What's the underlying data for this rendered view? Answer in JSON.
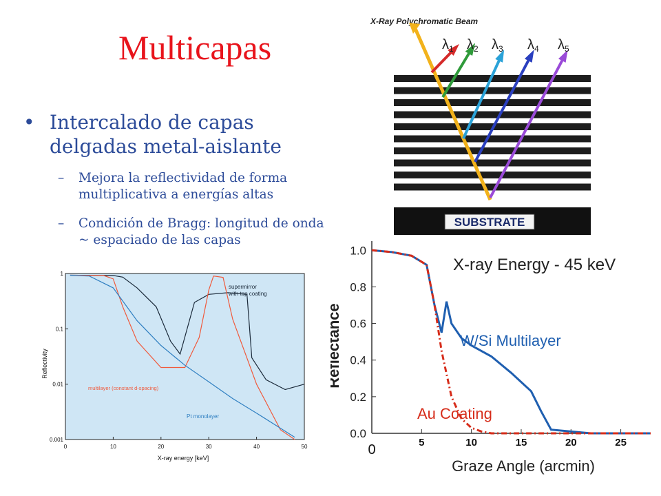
{
  "slide": {
    "title": "Multicapas",
    "bullet": "Intercalado de capas delgadas metal-aislante",
    "subbullets": [
      "Mejora la reflectividad de forma multiplicativa a energías altas",
      "Condición de Bragg: longitud de onda ~ espaciado de las capas"
    ]
  },
  "diagram": {
    "beam_label": "X-Ray Polychromatic Beam",
    "wavelengths": [
      "λ1",
      "λ2",
      "λ3",
      "λ4",
      "λ5"
    ],
    "substrate_label": "SUBSTRATE",
    "colors": {
      "beam": "#f2b21b",
      "l1": "#d52a2a",
      "l2": "#2f9a3a",
      "l3": "#2aa2d8",
      "l4": "#2a3fbf",
      "l5": "#9a4ad8"
    }
  },
  "chart_data": [
    {
      "type": "line",
      "xlabel": "X-ray energy [keV]",
      "ylabel": "Reflectivity",
      "x_ticks": [
        "0",
        "10",
        "20",
        "30",
        "40",
        "50"
      ],
      "y_ticks": [
        "0.001",
        "0.01",
        "0.1",
        "1"
      ],
      "xlim": [
        0,
        50
      ],
      "ylim": [
        0.001,
        1
      ],
      "yscale": "log",
      "annotations": [
        "supermirror with top coating",
        "multilayer (constant d-spacing)",
        "Pt monolayer"
      ],
      "series": [
        {
          "name": "supermirror with top coating",
          "color": "#1b2a3a",
          "x": [
            1,
            10,
            12,
            15,
            19,
            22,
            24,
            27,
            30,
            34,
            38,
            39,
            42,
            46,
            50
          ],
          "y": [
            0.93,
            0.92,
            0.86,
            0.55,
            0.25,
            0.06,
            0.035,
            0.3,
            0.42,
            0.45,
            0.42,
            0.03,
            0.012,
            0.008,
            0.01
          ]
        },
        {
          "name": "multilayer (constant d-spacing)",
          "color": "#f05a3c",
          "x": [
            1,
            8,
            10,
            12,
            15,
            20,
            25,
            28,
            30,
            31,
            33,
            35,
            40,
            45,
            48
          ],
          "y": [
            0.93,
            0.92,
            0.8,
            0.25,
            0.06,
            0.02,
            0.02,
            0.07,
            0.5,
            0.9,
            0.85,
            0.15,
            0.01,
            0.0015,
            0.001
          ]
        },
        {
          "name": "Pt monolayer",
          "color": "#2f7fc1",
          "x": [
            1,
            5,
            10,
            15,
            20,
            25,
            30,
            35,
            40,
            45,
            48
          ],
          "y": [
            0.93,
            0.9,
            0.55,
            0.14,
            0.05,
            0.022,
            0.011,
            0.0055,
            0.003,
            0.0016,
            0.0011
          ]
        }
      ]
    },
    {
      "type": "line",
      "title": "X-ray Energy - 45 keV",
      "xlabel": "Graze Angle (arcmin)",
      "ylabel": "Reflectance",
      "x_ticks": [
        "0",
        "5",
        "10",
        "15",
        "20",
        "25"
      ],
      "y_ticks": [
        "0.0",
        "0.2",
        "0.4",
        "0.6",
        "0.8",
        "1.0"
      ],
      "xlim": [
        0,
        28
      ],
      "ylim": [
        0,
        1.05
      ],
      "annotations": [
        "W/Si Multilayer",
        "Au Coating"
      ],
      "series": [
        {
          "name": "W/Si Multilayer",
          "color": "#1f5fb0",
          "x": [
            0,
            2,
            4,
            5.5,
            6.3,
            7,
            7.5,
            8,
            9,
            10,
            12,
            14,
            16,
            17,
            18,
            22,
            28
          ],
          "y": [
            1.0,
            0.99,
            0.97,
            0.92,
            0.7,
            0.55,
            0.72,
            0.6,
            0.52,
            0.48,
            0.42,
            0.33,
            0.23,
            0.12,
            0.02,
            0.0,
            0.0
          ]
        },
        {
          "name": "Au Coating",
          "color": "#d62c1a",
          "x": [
            0,
            2,
            4,
            5.5,
            6.3,
            7,
            8,
            9,
            10,
            11,
            12,
            28
          ],
          "y": [
            1.0,
            0.99,
            0.97,
            0.92,
            0.7,
            0.45,
            0.2,
            0.08,
            0.03,
            0.01,
            0.0,
            0.0
          ]
        }
      ]
    }
  ]
}
